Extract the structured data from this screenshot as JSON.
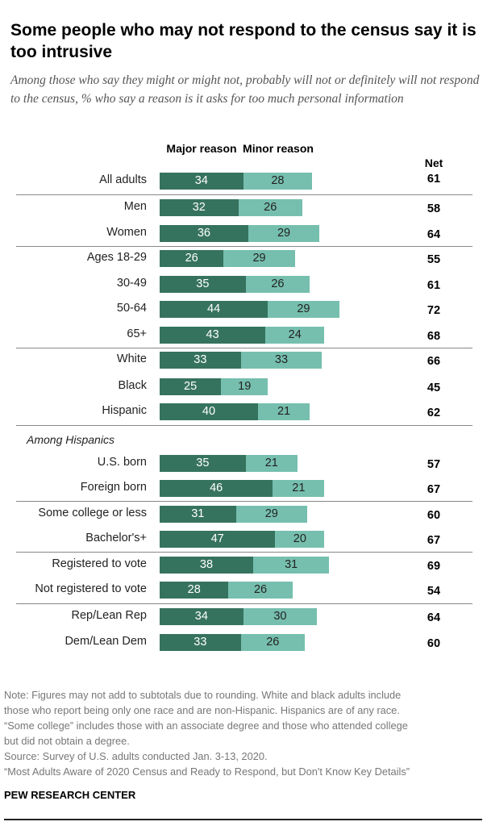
{
  "title": "Some people who may not respond to the census say it is too intrusive",
  "subtitle": "Among those who say they might or might not, probably will not or definitely will not respond to the census, % who say a reason is it asks for too much personal information",
  "colors": {
    "major": "#36735f",
    "minor": "#76bfae"
  },
  "chart_data": {
    "type": "bar",
    "orientation": "horizontal",
    "stacked": true,
    "headers": {
      "major": "Major reason",
      "minor": "Minor reason",
      "net": "Net"
    },
    "group_label": "Among Hispanics",
    "categories": [
      "All adults",
      "Men",
      "Women",
      "Ages 18-29",
      "30-49",
      "50-64",
      "65+",
      "White",
      "Black",
      "Hispanic",
      "U.S. born",
      "Foreign born",
      "Some college or less",
      "Bachelor's+",
      "Registered to vote",
      "Not registered to vote",
      "Rep/Lean Rep",
      "Dem/Lean Dem"
    ],
    "series": [
      {
        "name": "Major reason",
        "values": [
          34,
          32,
          36,
          26,
          35,
          44,
          43,
          33,
          25,
          40,
          35,
          46,
          31,
          47,
          38,
          28,
          34,
          33
        ]
      },
      {
        "name": "Minor reason",
        "values": [
          28,
          26,
          29,
          29,
          26,
          29,
          24,
          33,
          19,
          21,
          21,
          21,
          29,
          20,
          31,
          26,
          30,
          26
        ]
      }
    ],
    "net": [
      61,
      58,
      64,
      55,
      61,
      72,
      68,
      66,
      45,
      62,
      57,
      67,
      60,
      67,
      69,
      54,
      64,
      60
    ]
  },
  "notes": [
    "Note: Figures may not add to subtotals due to rounding. White and black adults include",
    "those who report being only one race and are non-Hispanic. Hispanics are of any race.",
    "“Some college” includes those with an associate degree and those who attended college",
    "but did not obtain a degree.",
    "Source: Survey of U.S. adults conducted Jan. 3-13, 2020.",
    "“Most Adults Aware of 2020 Census and Ready to Respond, but Don't Know Key Details”"
  ],
  "brand": "PEW RESEARCH CENTER"
}
